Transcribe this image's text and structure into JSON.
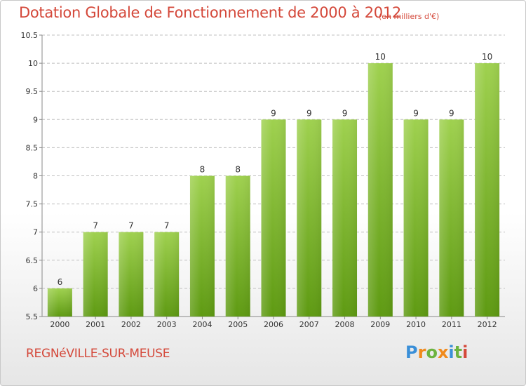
{
  "title": "Dotation Globale de Fonctionnement de 2000 à 2012",
  "subtitle": "(en milliers d'€)",
  "footer_label": "REGNéVILLE-SUR-MEUSE",
  "logo": {
    "letters": [
      "P",
      "r",
      "o",
      "x",
      "i",
      "t",
      "i"
    ],
    "colors": [
      "#3a8fd8",
      "#f08a1c",
      "#6cb33f",
      "#f08a1c",
      "#3a8fd8",
      "#6cb33f",
      "#d4483a"
    ]
  },
  "colors": {
    "text_accent": "#d4483a",
    "bar_top": "#9fd14f",
    "bar_bottom": "#5e9a12",
    "grid": "#bfbfbf"
  },
  "chart_data": {
    "type": "bar",
    "categories": [
      "2000",
      "2001",
      "2002",
      "2003",
      "2004",
      "2005",
      "2006",
      "2007",
      "2008",
      "2009",
      "2010",
      "2011",
      "2012"
    ],
    "values": [
      6,
      7,
      7,
      7,
      8,
      8,
      9,
      9,
      9,
      10,
      9,
      9,
      10
    ],
    "value_labels": [
      "6",
      "7",
      "7",
      "7",
      "8",
      "8",
      "9",
      "9",
      "9",
      "10",
      "9",
      "9",
      "10"
    ],
    "yticks": [
      "5.5",
      "6",
      "6.5",
      "7",
      "7.5",
      "8",
      "8.5",
      "9",
      "9.5",
      "10",
      "10.5"
    ],
    "ylim": [
      5.5,
      10.5
    ],
    "grid": true,
    "xlabel": "",
    "ylabel": ""
  }
}
